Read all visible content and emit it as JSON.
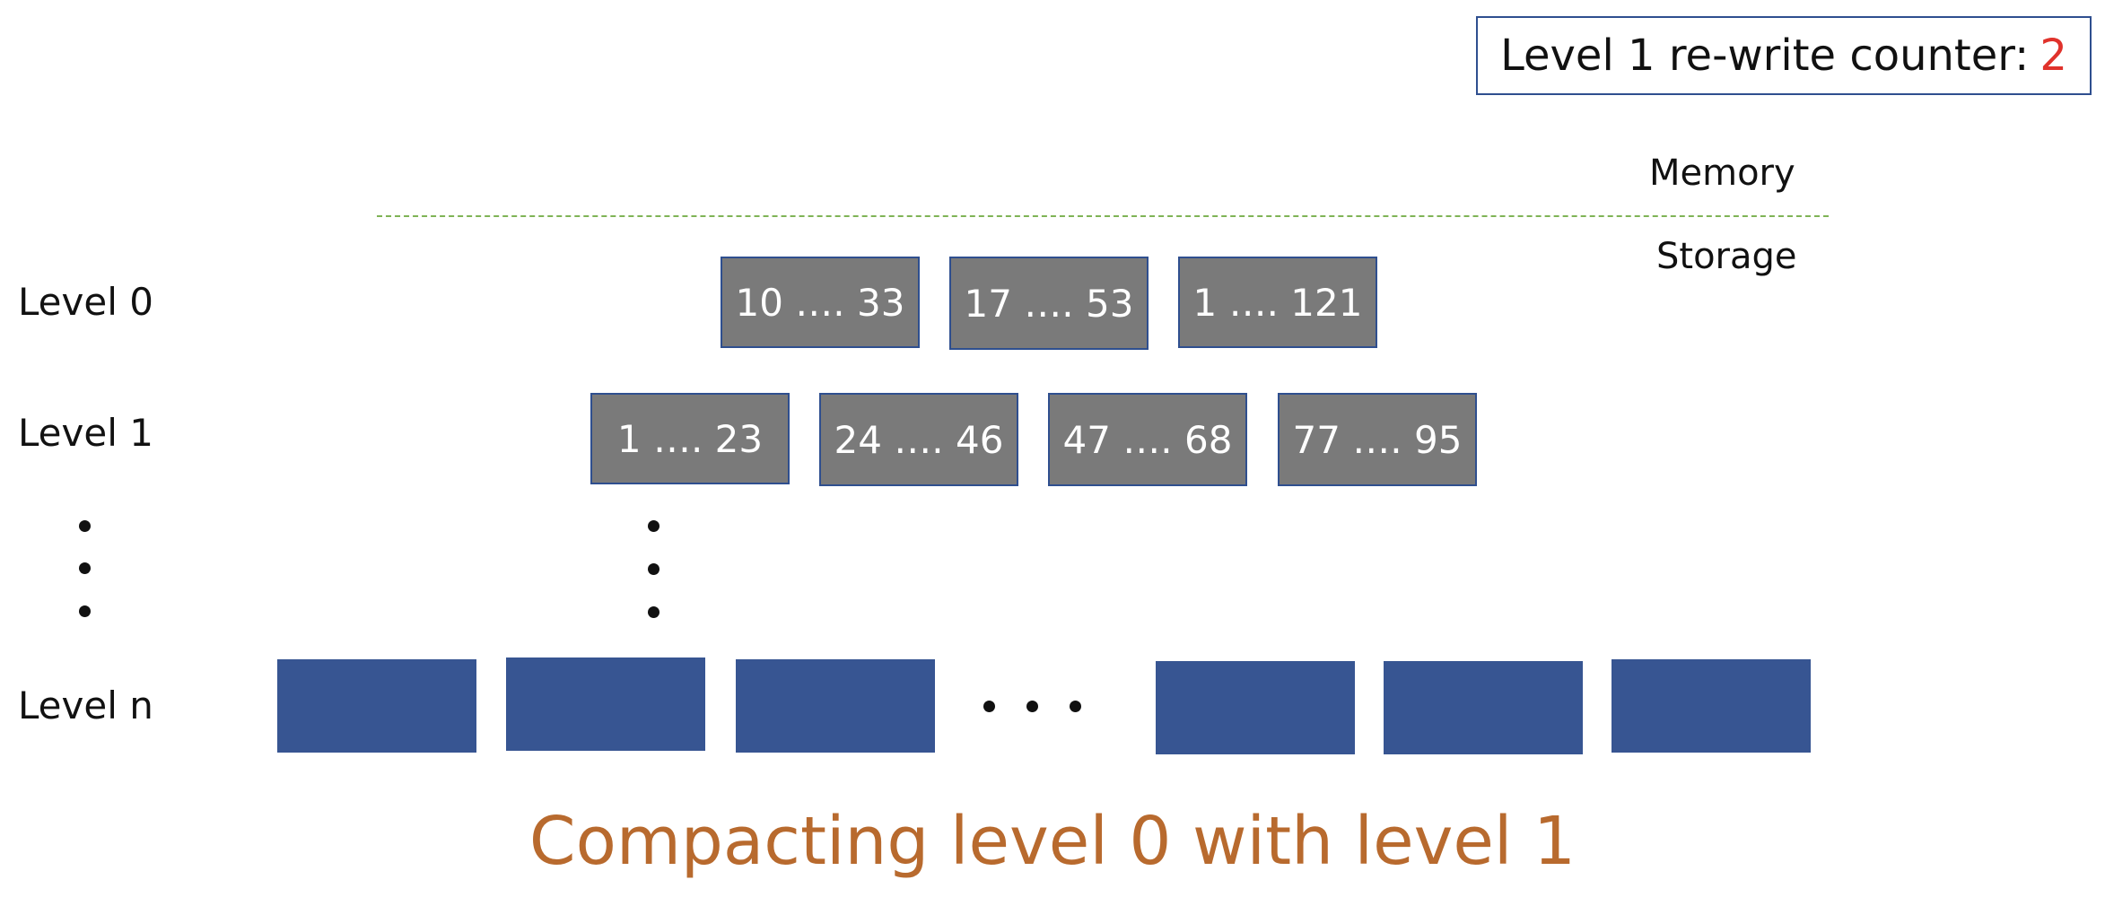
{
  "counter": {
    "label": "Level 1 re-write counter:",
    "value": "2",
    "value_color": "#e0322b"
  },
  "regions": {
    "memory": "Memory",
    "storage": "Storage"
  },
  "levels": {
    "level0": "Level 0",
    "level1": "Level 1",
    "leveln": "Level n"
  },
  "level0_tables": [
    "10 …. 33",
    "17 …. 53",
    "1 …. 121"
  ],
  "level1_tables": [
    "1 …. 23",
    "24 …. 46",
    "47 …. 68",
    "77 …. 95"
  ],
  "caption": "Compacting level 0 with level 1",
  "colors": {
    "sstable_fill": "#7a7a7a",
    "sstable_border": "#2f4f8f",
    "leveln_fill": "#375592",
    "divider": "#7fb356",
    "caption": "#b86a2e"
  }
}
